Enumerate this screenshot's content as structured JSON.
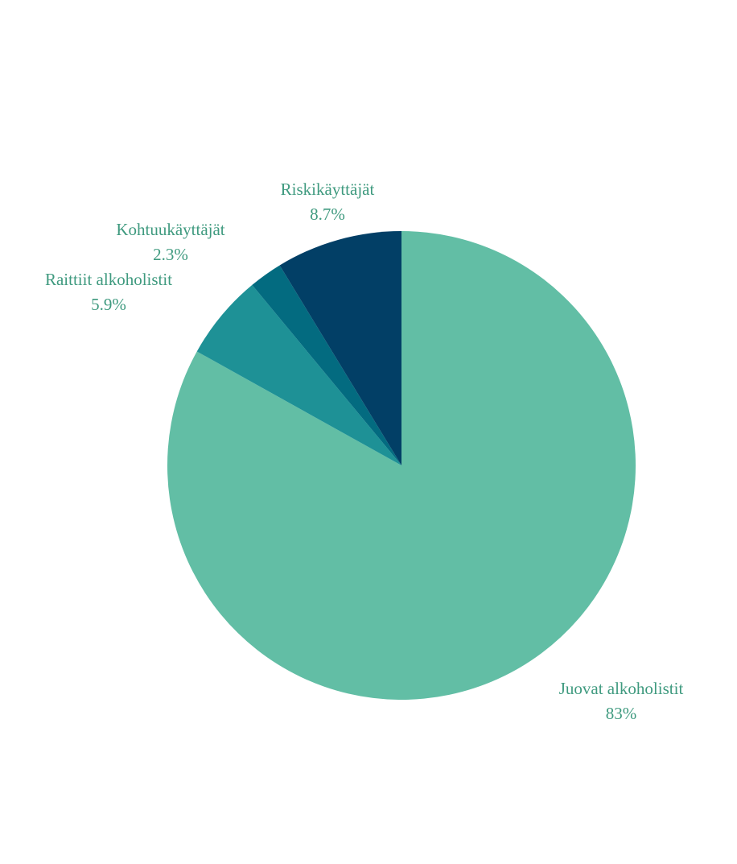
{
  "chart_data": {
    "type": "pie",
    "categories": [
      "Juovat alkoholistit",
      "Raittiit alkoholistit",
      "Kohtuukäyttäjät",
      "Riskikäyttäjät"
    ],
    "values": [
      83,
      5.9,
      2.3,
      8.7
    ],
    "value_labels": [
      "83%",
      "5.9%",
      "2.3%",
      "8.7%"
    ],
    "colors": [
      "#62bea5",
      "#1e9196",
      "#036b80",
      "#023f66"
    ]
  }
}
